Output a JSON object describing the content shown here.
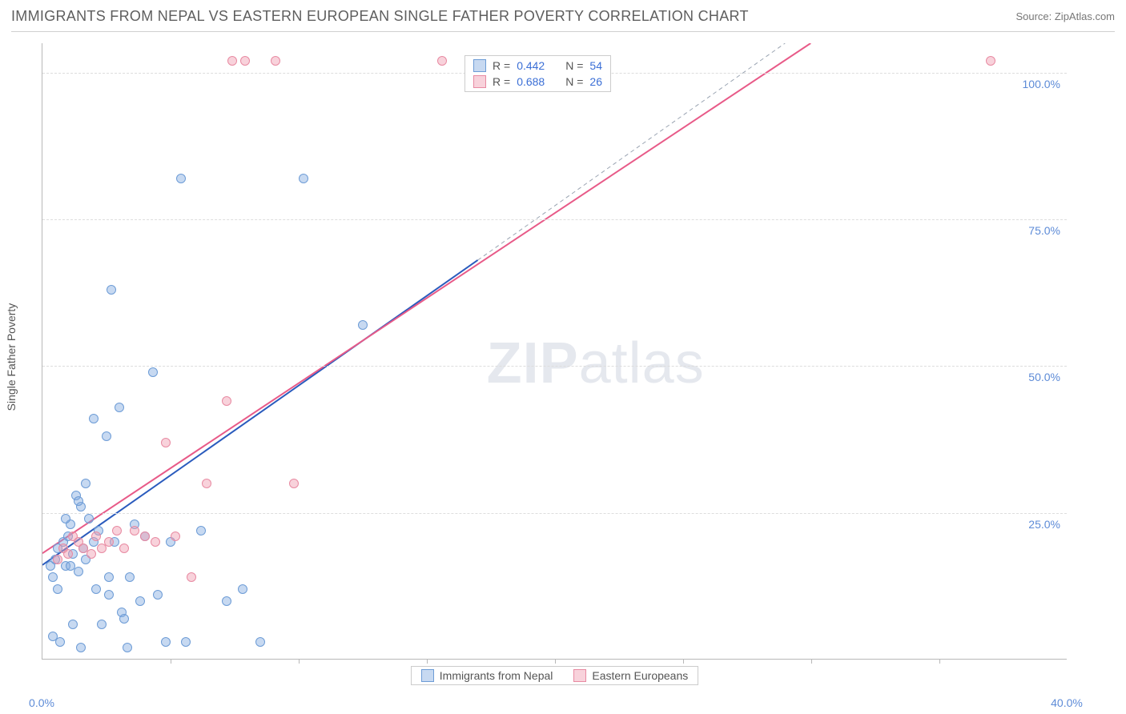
{
  "title": "IMMIGRANTS FROM NEPAL VS EASTERN EUROPEAN SINGLE FATHER POVERTY CORRELATION CHART",
  "source": "Source: ZipAtlas.com",
  "ylabel": "Single Father Poverty",
  "watermark_zip": "ZIP",
  "watermark_atlas": "atlas",
  "chart": {
    "type": "scatter",
    "xlim": [
      0,
      40
    ],
    "ylim": [
      0,
      105
    ],
    "x_ticks": [
      0,
      40
    ],
    "x_tick_labels": [
      "0.0%",
      "40.0%"
    ],
    "x_minor_ticks": [
      5,
      10,
      15,
      20,
      25,
      30,
      35
    ],
    "y_ticks": [
      25,
      50,
      75,
      100
    ],
    "y_tick_labels": [
      "25.0%",
      "50.0%",
      "75.0%",
      "100.0%"
    ],
    "background_color": "#ffffff",
    "grid_color": "#dddddd",
    "marker_radius": 6,
    "series": [
      {
        "key": "nepal",
        "label": "Immigrants from Nepal",
        "fill": "rgba(130,170,225,0.45)",
        "stroke": "#6d9cd6",
        "r_value": "0.442",
        "n_value": "54",
        "trend": {
          "x1": 0,
          "y1": 16,
          "x2": 17,
          "y2": 68,
          "color": "#2a5bbd",
          "width": 2
        },
        "trend_ext": {
          "x1": 17,
          "y1": 68,
          "x2": 29,
          "y2": 105,
          "color": "#9aa4b2",
          "dash": true
        },
        "points": [
          [
            0.3,
            16
          ],
          [
            0.5,
            17
          ],
          [
            0.6,
            19
          ],
          [
            0.8,
            20
          ],
          [
            0.9,
            16
          ],
          [
            1.0,
            21
          ],
          [
            1.1,
            23
          ],
          [
            1.2,
            18
          ],
          [
            1.3,
            28
          ],
          [
            1.4,
            15
          ],
          [
            1.5,
            26
          ],
          [
            1.6,
            19
          ],
          [
            1.7,
            17
          ],
          [
            1.8,
            24
          ],
          [
            2.0,
            41
          ],
          [
            2.0,
            20
          ],
          [
            2.2,
            22
          ],
          [
            2.3,
            6
          ],
          [
            2.5,
            38
          ],
          [
            2.6,
            11
          ],
          [
            2.7,
            63
          ],
          [
            2.8,
            20
          ],
          [
            3.0,
            43
          ],
          [
            3.1,
            8
          ],
          [
            3.3,
            2
          ],
          [
            3.4,
            14
          ],
          [
            3.6,
            23
          ],
          [
            3.8,
            10
          ],
          [
            4.0,
            21
          ],
          [
            4.3,
            49
          ],
          [
            4.5,
            11
          ],
          [
            4.8,
            3
          ],
          [
            5.0,
            20
          ],
          [
            5.4,
            82
          ],
          [
            5.6,
            3
          ],
          [
            6.2,
            22
          ],
          [
            7.2,
            10
          ],
          [
            7.8,
            12
          ],
          [
            8.5,
            3
          ],
          [
            10.2,
            82
          ],
          [
            12.5,
            57
          ],
          [
            0.4,
            14
          ],
          [
            0.6,
            12
          ],
          [
            0.9,
            24
          ],
          [
            1.1,
            16
          ],
          [
            1.4,
            27
          ],
          [
            1.7,
            30
          ],
          [
            2.1,
            12
          ],
          [
            2.6,
            14
          ],
          [
            3.2,
            7
          ],
          [
            0.4,
            4
          ],
          [
            0.7,
            3
          ],
          [
            1.2,
            6
          ],
          [
            1.5,
            2
          ]
        ]
      },
      {
        "key": "eastern",
        "label": "Eastern Europeans",
        "fill": "rgba(240,155,175,0.45)",
        "stroke": "#e88aa2",
        "r_value": "0.688",
        "n_value": "26",
        "trend": {
          "x1": 0,
          "y1": 18,
          "x2": 30,
          "y2": 105,
          "color": "#e85a88",
          "width": 2
        },
        "points": [
          [
            0.6,
            17
          ],
          [
            0.8,
            19
          ],
          [
            1.0,
            18
          ],
          [
            1.2,
            21
          ],
          [
            1.4,
            20
          ],
          [
            1.6,
            19
          ],
          [
            1.9,
            18
          ],
          [
            2.1,
            21
          ],
          [
            2.3,
            19
          ],
          [
            2.6,
            20
          ],
          [
            2.9,
            22
          ],
          [
            3.2,
            19
          ],
          [
            3.6,
            22
          ],
          [
            4.0,
            21
          ],
          [
            4.4,
            20
          ],
          [
            4.8,
            37
          ],
          [
            5.2,
            21
          ],
          [
            5.8,
            14
          ],
          [
            6.4,
            30
          ],
          [
            7.2,
            44
          ],
          [
            7.4,
            102
          ],
          [
            7.9,
            102
          ],
          [
            9.1,
            102
          ],
          [
            9.8,
            30
          ],
          [
            15.6,
            102
          ],
          [
            37.0,
            102
          ]
        ]
      }
    ]
  },
  "legend_top": {
    "r_label": "R =",
    "n_label": "N ="
  }
}
